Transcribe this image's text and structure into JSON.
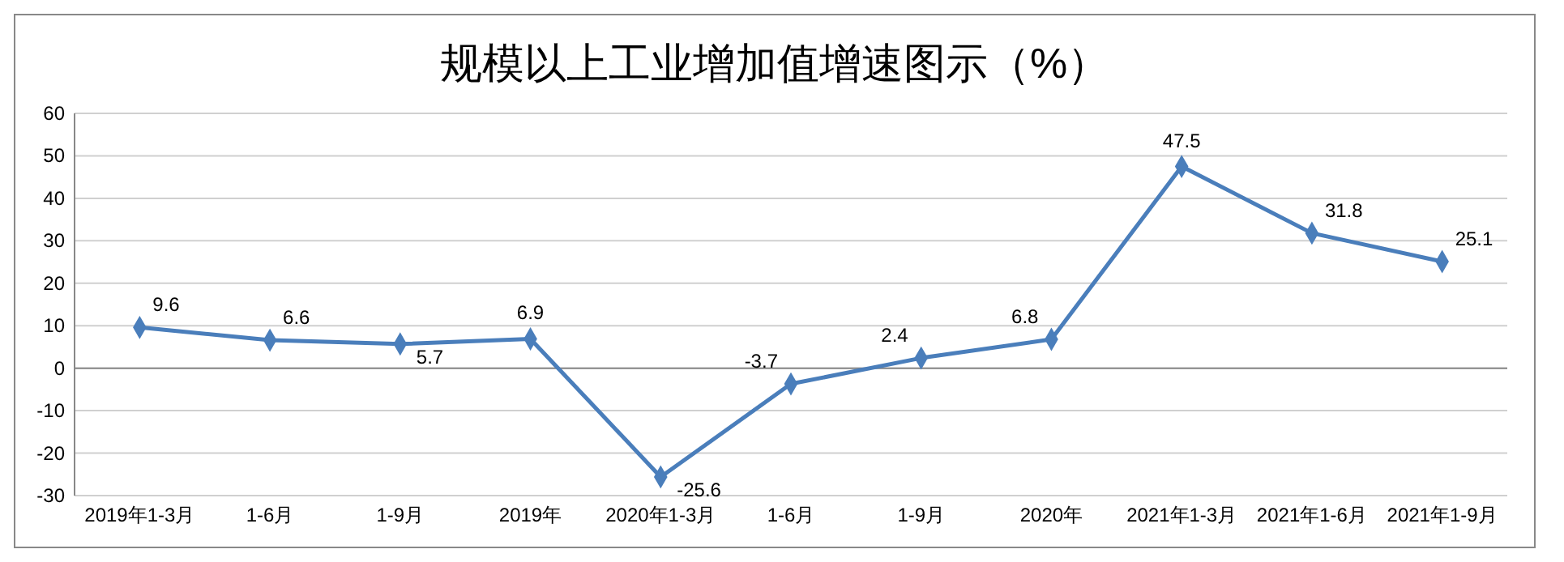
{
  "chart_data": {
    "type": "line",
    "title": "规模以上工业增加值增速图示（%）",
    "categories": [
      "2019年1-3月",
      "1-6月",
      "1-9月",
      "2019年",
      "2020年1-3月",
      "1-6月",
      "1-9月",
      "2020年",
      "2021年1-3月",
      "2021年1-6月",
      "2021年1-9月"
    ],
    "series": [
      {
        "color": "#4a7ebb",
        "values": [
          9.6,
          6.6,
          5.7,
          6.9,
          -25.6,
          -3.7,
          2.4,
          6.8,
          47.5,
          31.8,
          25.1
        ]
      }
    ],
    "ylim": [
      -30,
      60
    ],
    "yticks": [
      -30,
      -20,
      -10,
      0,
      10,
      20,
      30,
      40,
      50,
      60
    ],
    "grid": "y",
    "marker": "diamond",
    "line_style": "solid",
    "data_labels": true
  }
}
